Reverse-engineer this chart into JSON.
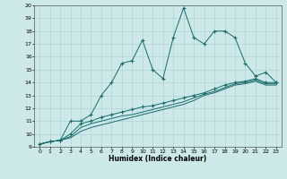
{
  "xlabel": "Humidex (Indice chaleur)",
  "xlim": [
    -0.5,
    23.5
  ],
  "ylim": [
    9,
    20
  ],
  "yticks": [
    9,
    10,
    11,
    12,
    13,
    14,
    15,
    16,
    17,
    18,
    19,
    20
  ],
  "xticks": [
    0,
    1,
    2,
    3,
    4,
    5,
    6,
    7,
    8,
    9,
    10,
    11,
    12,
    13,
    14,
    15,
    16,
    17,
    18,
    19,
    20,
    21,
    22,
    23
  ],
  "bg_color": "#cce8e8",
  "grid_color": "#aacfcf",
  "line_color": "#1a6b6b",
  "line1_x": [
    0,
    1,
    2,
    3,
    4,
    5,
    6,
    7,
    8,
    9,
    10,
    11,
    12,
    13,
    14,
    15,
    16,
    17,
    18,
    19,
    20,
    21,
    22,
    23
  ],
  "line1_y": [
    9.2,
    9.4,
    9.5,
    11.0,
    11.0,
    11.5,
    13.0,
    14.0,
    15.5,
    15.7,
    17.3,
    15.0,
    14.3,
    17.5,
    19.8,
    17.5,
    17.0,
    18.0,
    18.0,
    17.5,
    15.5,
    14.5,
    14.8,
    14.0
  ],
  "line2_x": [
    0,
    1,
    2,
    3,
    4,
    5,
    6,
    7,
    8,
    9,
    10,
    11,
    12,
    13,
    14,
    15,
    16,
    17,
    18,
    19,
    20,
    21,
    22,
    23
  ],
  "line2_y": [
    9.2,
    9.4,
    9.5,
    10.0,
    10.8,
    11.0,
    11.3,
    11.5,
    11.7,
    11.9,
    12.1,
    12.2,
    12.4,
    12.6,
    12.8,
    13.0,
    13.2,
    13.5,
    13.8,
    14.0,
    14.1,
    14.3,
    14.0,
    14.0
  ],
  "line3_x": [
    0,
    1,
    2,
    3,
    4,
    5,
    6,
    7,
    8,
    9,
    10,
    11,
    12,
    13,
    14,
    15,
    16,
    17,
    18,
    19,
    20,
    21,
    22,
    23
  ],
  "line3_y": [
    9.2,
    9.4,
    9.5,
    9.8,
    10.5,
    10.8,
    11.0,
    11.2,
    11.4,
    11.5,
    11.7,
    11.9,
    12.1,
    12.3,
    12.5,
    12.8,
    13.1,
    13.3,
    13.6,
    13.9,
    14.0,
    14.2,
    13.9,
    13.9
  ],
  "line4_x": [
    0,
    1,
    2,
    3,
    4,
    5,
    6,
    7,
    8,
    9,
    10,
    11,
    12,
    13,
    14,
    15,
    16,
    17,
    18,
    19,
    20,
    21,
    22,
    23
  ],
  "line4_y": [
    9.2,
    9.4,
    9.5,
    9.7,
    10.2,
    10.5,
    10.7,
    10.9,
    11.1,
    11.3,
    11.5,
    11.7,
    11.9,
    12.1,
    12.3,
    12.6,
    13.0,
    13.2,
    13.5,
    13.8,
    13.9,
    14.1,
    13.8,
    13.8
  ]
}
